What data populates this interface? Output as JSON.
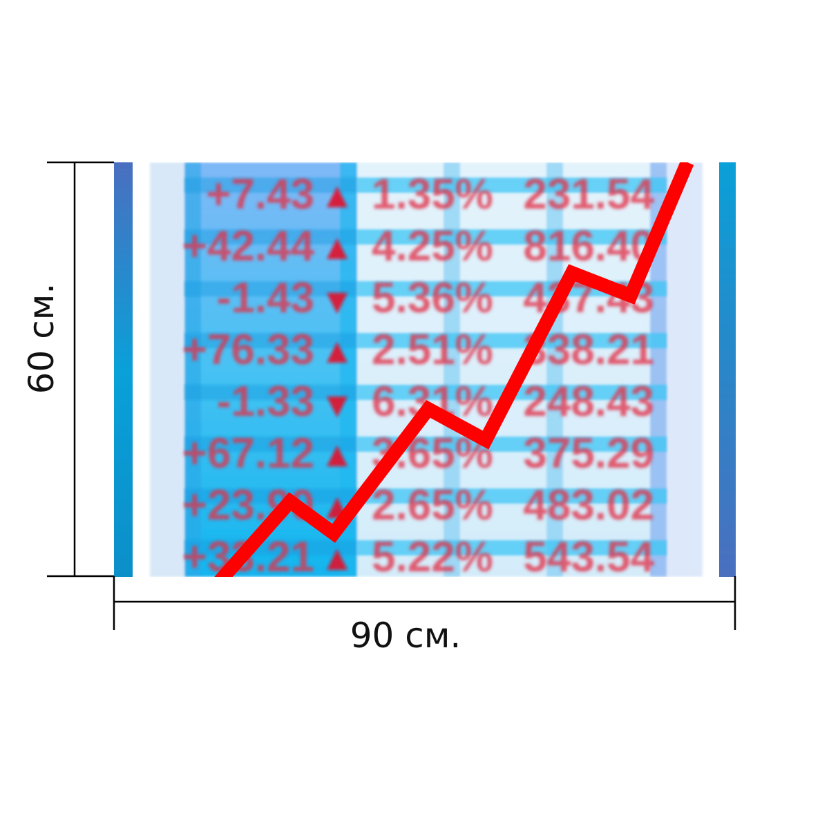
{
  "dimensions": {
    "width_label": "90 см.",
    "height_label": "60 см."
  },
  "colors": {
    "trend_line": "#ff0000",
    "ticker_text": "#e2334a",
    "edge_stripe_dark": "#4a6fbf",
    "edge_stripe_light": "#0aa0d8"
  },
  "ticker_table": {
    "rows": [
      {
        "change": "+7.43",
        "direction": "up",
        "percent": "1.35%",
        "price": "231.54"
      },
      {
        "change": "+42.44",
        "direction": "up",
        "percent": "4.25%",
        "price": "816.40"
      },
      {
        "change": "-1.43",
        "direction": "down",
        "percent": "5.36%",
        "price": "437.43"
      },
      {
        "change": "+76.33",
        "direction": "up",
        "percent": "2.51%",
        "price": "338.21"
      },
      {
        "change": "-1.33",
        "direction": "down",
        "percent": "6.31%",
        "price": "248.43"
      },
      {
        "change": "+67.12",
        "direction": "up",
        "percent": "3.65%",
        "price": "375.29"
      },
      {
        "change": "+23.90",
        "direction": "up",
        "percent": "2.65%",
        "price": "483.02"
      },
      {
        "change": "+33.21",
        "direction": "up",
        "percent": "5.22%",
        "price": "543.54"
      }
    ]
  },
  "icons": {
    "up": "up-triangle-icon",
    "down": "down-triangle-icon"
  }
}
